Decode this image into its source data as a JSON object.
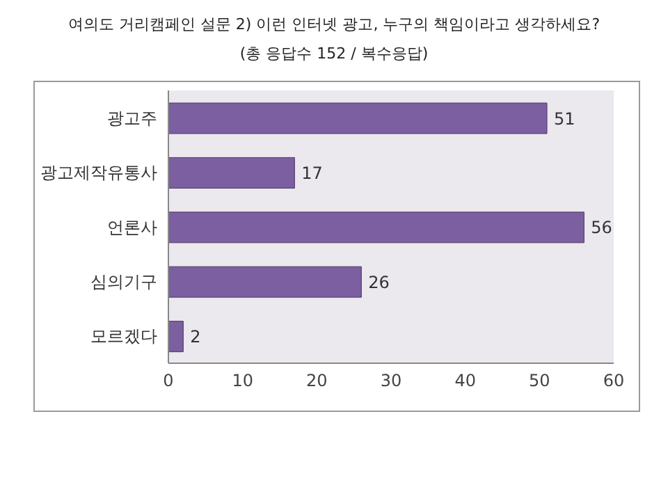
{
  "chart_data": {
    "type": "bar",
    "orientation": "horizontal",
    "title": "여의도 거리캠페인 설문 2) 이런 인터넷 광고, 누구의 책임이라고 생각하세요?",
    "subtitle": "(총 응답수 152 / 복수응답)",
    "categories": [
      "광고주",
      "광고제작유통사",
      "언론사",
      "심의기구",
      "모르겠다"
    ],
    "values": [
      51,
      17,
      56,
      26,
      2
    ],
    "color": "#7b5fa0",
    "xlim": [
      0,
      60
    ],
    "xticks": [
      0,
      10,
      20,
      30,
      40,
      50,
      60
    ],
    "data_labels": true
  }
}
